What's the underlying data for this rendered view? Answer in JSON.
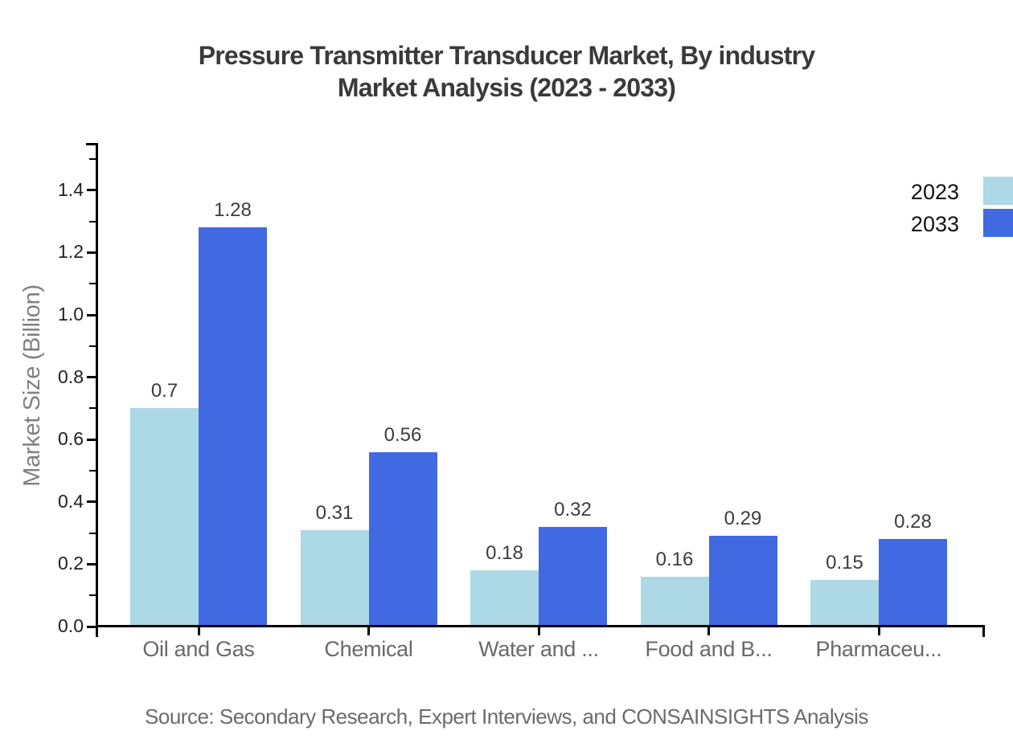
{
  "title": {
    "line1": "Pressure Transmitter Transducer Market, By industry",
    "line2": "Market Analysis (2023 - 2033)"
  },
  "source": "Source: Secondary Research, Expert Interviews, and CONSAINSIGHTS Analysis",
  "y_axis": {
    "label": "Market Size (Billion)",
    "tick_labels": [
      "0.0",
      "0.2",
      "0.4",
      "0.6",
      "0.8",
      "1.0",
      "1.2",
      "1.4"
    ],
    "tick_values": [
      0.0,
      0.2,
      0.4,
      0.6,
      0.8,
      1.0,
      1.2,
      1.4
    ],
    "minor_tick_values": [
      0.1,
      0.3,
      0.5,
      0.7,
      0.9,
      1.1,
      1.3,
      1.5
    ]
  },
  "colors": {
    "series_2023": "#add8e6",
    "series_2033": "#4169e1",
    "axis": "#000000",
    "title_text": "#3a3a3a",
    "category_text": "#696969",
    "source_text": "#6b6b6b"
  },
  "chart_data": {
    "type": "bar",
    "title": "Pressure Transmitter Transducer Market, By industry Market Analysis (2023 - 2033)",
    "xlabel": "",
    "ylabel": "Market Size (Billion)",
    "ylim": [
      0,
      1.55
    ],
    "yticks": [
      0.0,
      0.2,
      0.4,
      0.6,
      0.8,
      1.0,
      1.2,
      1.4
    ],
    "grid": false,
    "legend_position": "top-right",
    "categories": [
      "Oil and Gas",
      "Chemical",
      "Water and ...",
      "Food and B...",
      "Pharmaceu..."
    ],
    "series": [
      {
        "name": "2023",
        "color": "#add8e6",
        "values": [
          0.7,
          0.31,
          0.18,
          0.16,
          0.15
        ],
        "value_labels": [
          "0.7",
          "0.31",
          "0.18",
          "0.16",
          "0.15"
        ]
      },
      {
        "name": "2033",
        "color": "#4169e1",
        "values": [
          1.28,
          0.56,
          0.32,
          0.29,
          0.28
        ],
        "value_labels": [
          "1.28",
          "0.56",
          "0.32",
          "0.29",
          "0.28"
        ]
      }
    ]
  }
}
